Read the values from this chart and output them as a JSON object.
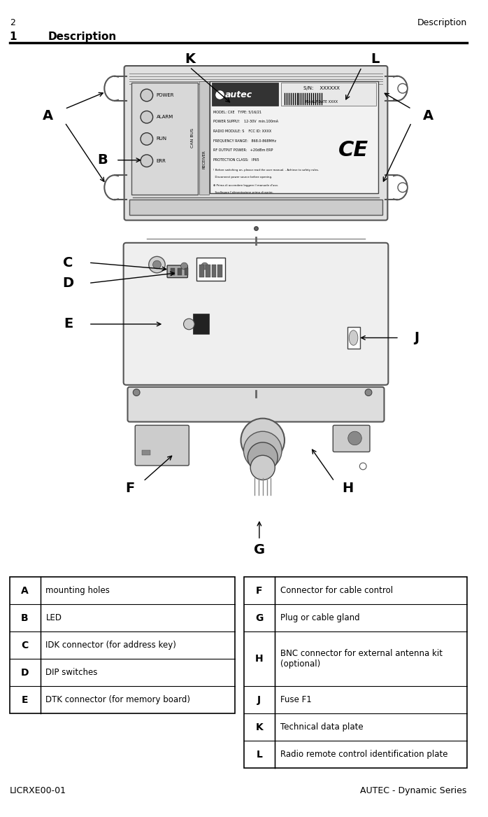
{
  "page_number": "2",
  "page_header_right": "Description",
  "section_number": "1",
  "section_title": "Description",
  "footer_left": "LICRXE00-01",
  "footer_right": "AUTEC - Dynamic Series",
  "table_left": [
    {
      "key": "A",
      "value": "mounting holes"
    },
    {
      "key": "B",
      "value": "LED"
    },
    {
      "key": "C",
      "value": "IDK connector (for address key)"
    },
    {
      "key": "D",
      "value": "DIP switches"
    },
    {
      "key": "E",
      "value": "DTK connector (for memory board)"
    }
  ],
  "table_right": [
    {
      "key": "F",
      "value": "Connector for cable control"
    },
    {
      "key": "G",
      "value": "Plug or cable gland"
    },
    {
      "key": "H",
      "value": "BNC connector for external antenna kit\n(optional)"
    },
    {
      "key": "J",
      "value": "Fuse F1"
    },
    {
      "key": "K",
      "value": "Technical data plate"
    },
    {
      "key": "L",
      "value": "Radio remote control identification plate"
    }
  ],
  "bg_color": "#ffffff"
}
